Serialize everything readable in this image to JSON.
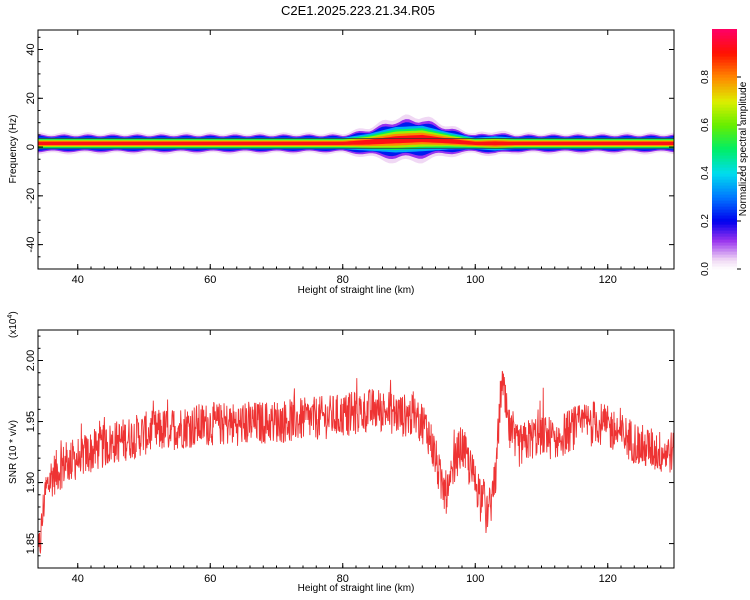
{
  "title": "C2E1.2025.223.21.34.R05",
  "colors": {
    "line": "#ee3333",
    "axis": "#000000",
    "background": "#ffffff"
  },
  "chart_data": [
    {
      "type": "heatmap",
      "xlabel": "Height of straight line (km)",
      "ylabel": "Frequency (Hz)",
      "xlim": [
        34,
        130
      ],
      "ylim": [
        -50,
        48
      ],
      "x_ticks": [
        "40",
        "60",
        "80",
        "100",
        "120"
      ],
      "x_tick_values": [
        40,
        60,
        80,
        100,
        120
      ],
      "y_ticks": [
        "40",
        "20",
        "0",
        "-20",
        "-40"
      ],
      "y_tick_values": [
        40,
        20,
        0,
        -20,
        -40
      ],
      "colorbar": {
        "label": "Normalized spectral amplitude",
        "range": [
          0,
          1
        ],
        "ticks": [
          "0.0",
          "0.2",
          "0.4",
          "0.6",
          "0.8"
        ],
        "tick_values": [
          0.0,
          0.2,
          0.4,
          0.6,
          0.8
        ]
      },
      "band": {
        "center_hz": [
          [
            34,
            1.5
          ],
          [
            50,
            1.5
          ],
          [
            60,
            1.5
          ],
          [
            70,
            1.5
          ],
          [
            80,
            1.5
          ],
          [
            84,
            2
          ],
          [
            88,
            3
          ],
          [
            92,
            3.5
          ],
          [
            96,
            2.5
          ],
          [
            100,
            1.5
          ],
          [
            103,
            1.5
          ],
          [
            106,
            1.5
          ],
          [
            115,
            1.5
          ],
          [
            130,
            1.5
          ]
        ],
        "halfwidth_hz": [
          [
            34,
            2
          ],
          [
            80,
            2
          ],
          [
            84,
            3
          ],
          [
            88,
            4.5
          ],
          [
            92,
            4.5
          ],
          [
            96,
            3
          ],
          [
            100,
            2
          ],
          [
            103,
            2.5
          ],
          [
            106,
            2
          ],
          [
            130,
            2
          ]
        ]
      }
    },
    {
      "type": "line",
      "xlabel": "Height of straight line (km)",
      "ylabel": "SNR (10 * v/v)",
      "y_multiplier": "(x10",
      "y_multiplier_exp": "4",
      "y_multiplier_close": ")",
      "xlim": [
        34,
        130
      ],
      "ylim": [
        1.83,
        2.025
      ],
      "x_ticks": [
        "40",
        "60",
        "80",
        "100",
        "120"
      ],
      "x_tick_values": [
        40,
        60,
        80,
        100,
        120
      ],
      "y_ticks": [
        "1.85",
        "1.90",
        "1.95",
        "2.00"
      ],
      "y_tick_values": [
        1.85,
        1.9,
        1.95,
        2.0
      ],
      "series": [
        {
          "color": "#ee3333",
          "noise": 0.018,
          "x": [
            34,
            34.5,
            35,
            36,
            38,
            40,
            42,
            45,
            50,
            55,
            60,
            65,
            70,
            75,
            80,
            83,
            85,
            87,
            89,
            90,
            92,
            93,
            94,
            95,
            96,
            97,
            98,
            99,
            100,
            101,
            102,
            103,
            104,
            105,
            106,
            107,
            108,
            110,
            112,
            115,
            118,
            120,
            122,
            125,
            128,
            130
          ],
          "y": [
            1.835,
            1.86,
            1.89,
            1.905,
            1.915,
            1.92,
            1.925,
            1.932,
            1.94,
            1.945,
            1.948,
            1.948,
            1.95,
            1.952,
            1.955,
            1.958,
            1.96,
            1.958,
            1.955,
            1.955,
            1.95,
            1.94,
            1.92,
            1.895,
            1.89,
            1.92,
            1.93,
            1.915,
            1.9,
            1.89,
            1.875,
            1.9,
            1.985,
            1.945,
            1.93,
            1.93,
            1.935,
            1.94,
            1.935,
            1.945,
            1.95,
            1.945,
            1.94,
            1.93,
            1.925,
            1.925
          ]
        }
      ]
    }
  ]
}
